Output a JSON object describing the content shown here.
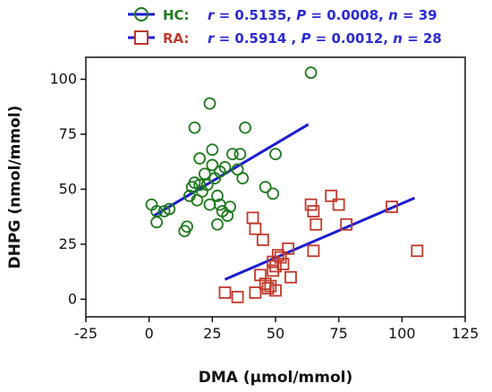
{
  "chart_data": {
    "type": "scatter",
    "xlabel": "DMA (µmol/mmol)",
    "ylabel": "DHPG (nmol/mmol)",
    "xlim": [
      -25,
      125
    ],
    "ylim": [
      -8,
      110
    ],
    "xticks": [
      -25,
      0,
      25,
      50,
      75,
      100,
      125
    ],
    "yticks": [
      0,
      25,
      50,
      75,
      100
    ],
    "grid": false,
    "legend_position": "top",
    "series": [
      {
        "name": "HC:",
        "stats_parts": [
          "r",
          " = 0.5135, ",
          "P",
          " = 0.0008, ",
          "n",
          " = 39"
        ],
        "marker": "circle",
        "color": "#1f7a1f",
        "fit_color": "#1b1bd1",
        "fit_line": [
          [
            2,
            38
          ],
          [
            63,
            79.5
          ]
        ],
        "points": [
          [
            1,
            43
          ],
          [
            3,
            35
          ],
          [
            3,
            40
          ],
          [
            6,
            40
          ],
          [
            8,
            41
          ],
          [
            14,
            31
          ],
          [
            15,
            33
          ],
          [
            16,
            47
          ],
          [
            17,
            51
          ],
          [
            18,
            53
          ],
          [
            18,
            78
          ],
          [
            19,
            45
          ],
          [
            20,
            52
          ],
          [
            20,
            64
          ],
          [
            21,
            49
          ],
          [
            22,
            57
          ],
          [
            23,
            52
          ],
          [
            24,
            43
          ],
          [
            24,
            89
          ],
          [
            25,
            68
          ],
          [
            25,
            61
          ],
          [
            26,
            55
          ],
          [
            27,
            47
          ],
          [
            27,
            34
          ],
          [
            28,
            58
          ],
          [
            28,
            43
          ],
          [
            29,
            40
          ],
          [
            30,
            60
          ],
          [
            31,
            38
          ],
          [
            32,
            42
          ],
          [
            33,
            66
          ],
          [
            35,
            59
          ],
          [
            36,
            66
          ],
          [
            37,
            55
          ],
          [
            38,
            78
          ],
          [
            46,
            51
          ],
          [
            49,
            48
          ],
          [
            50,
            66
          ],
          [
            64,
            103
          ]
        ]
      },
      {
        "name": "RA:",
        "stats_parts": [
          "r",
          " = 0.5914 , ",
          "P",
          " = 0.0012, ",
          "n",
          " = 28"
        ],
        "marker": "square",
        "color": "#c0392b",
        "fit_color": "#1b1bd1",
        "fit_line": [
          [
            30,
            9
          ],
          [
            105,
            46
          ]
        ],
        "points": [
          [
            30,
            3
          ],
          [
            35,
            1
          ],
          [
            41,
            37
          ],
          [
            42,
            3
          ],
          [
            42,
            32
          ],
          [
            44,
            11
          ],
          [
            45,
            27
          ],
          [
            46,
            7
          ],
          [
            47,
            5
          ],
          [
            48,
            6
          ],
          [
            49,
            17
          ],
          [
            49,
            13
          ],
          [
            50,
            15
          ],
          [
            50,
            4
          ],
          [
            51,
            20
          ],
          [
            52,
            19
          ],
          [
            53,
            16
          ],
          [
            55,
            23
          ],
          [
            56,
            10
          ],
          [
            64,
            43
          ],
          [
            65,
            40
          ],
          [
            65,
            22
          ],
          [
            66,
            34
          ],
          [
            72,
            47
          ],
          [
            75,
            43
          ],
          [
            78,
            34
          ],
          [
            96,
            42
          ],
          [
            106,
            22
          ]
        ]
      }
    ]
  }
}
